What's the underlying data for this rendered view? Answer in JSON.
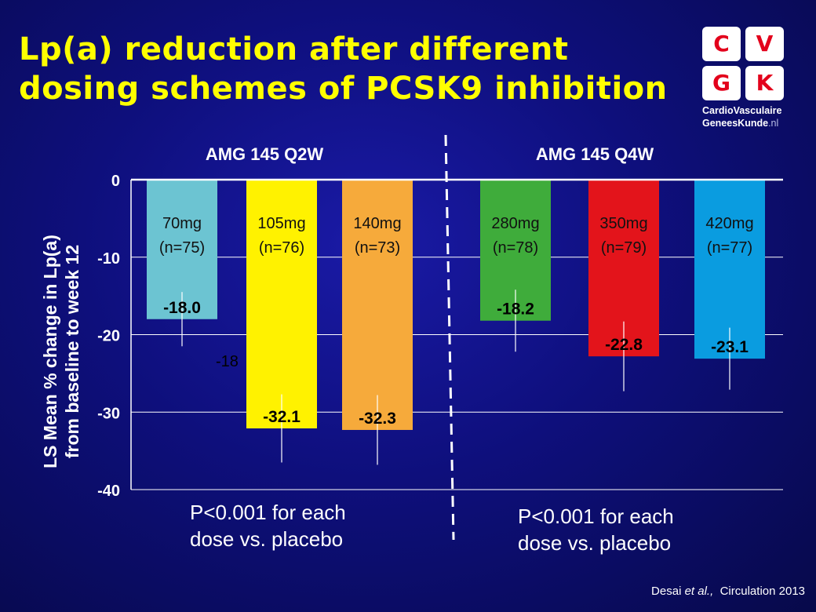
{
  "slide": {
    "title_line1": "Lp(a) reduction after different",
    "title_line2": "dosing schemes of PCSK9 inhibition",
    "citation_author": "Desai ",
    "citation_etal": "et al.,",
    "citation_journal": "  Circulation 2013"
  },
  "logo": {
    "letters": [
      "C",
      "V",
      "G",
      "K"
    ],
    "line1": "CardioVasculaire",
    "line2_main": "GeneesKunde",
    "line2_suffix": ".nl"
  },
  "notes": {
    "left_line1": "P<0.001 for each",
    "left_line2": "dose vs. placebo",
    "right_line1": "P<0.001 for each",
    "right_line2": "dose vs. placebo"
  },
  "colors": {
    "background": "#0e0f7c",
    "title": "#ffff00",
    "gridline": "#ffffff"
  },
  "chart_data": {
    "type": "bar",
    "ylabel_line1": "LS Mean % change in Lp(a)",
    "ylabel_line2": "from baseline to week 12",
    "ylim": [
      -40,
      0
    ],
    "yticks": [
      0,
      -10,
      -20,
      -30,
      -40
    ],
    "grid": true,
    "groups": [
      {
        "name": "AMG 145 Q2W"
      },
      {
        "name": "AMG 145 Q4W"
      }
    ],
    "bars": [
      {
        "group": 0,
        "dose": "70mg",
        "n": "(n=75)",
        "value": -18.0,
        "label": "-18.0",
        "err": 3.5,
        "color": "#6cc4d2"
      },
      {
        "group": 0,
        "dose": "105mg",
        "n": "(n=76)",
        "value": -32.1,
        "label": "-32.1",
        "err": 4.4,
        "color": "#fff200"
      },
      {
        "group": 0,
        "dose": "140mg",
        "n": "(n=73)",
        "value": -32.3,
        "label": "-32.3",
        "err": 4.5,
        "color": "#f6aa3b"
      },
      {
        "group": 1,
        "dose": "280mg",
        "n": "(n=78)",
        "value": -18.2,
        "label": "-18.2",
        "err": 4.0,
        "color": "#3fac3b"
      },
      {
        "group": 1,
        "dose": "350mg",
        "n": "(n=79)",
        "value": -22.8,
        "label": "-22.8",
        "err": 4.5,
        "color": "#e3141b"
      },
      {
        "group": 1,
        "dose": "420mg",
        "n": "(n=77)",
        "value": -23.1,
        "label": "-23.1",
        "err": 4.0,
        "color": "#0a9ce0"
      }
    ],
    "annotation_stray": "-18"
  }
}
